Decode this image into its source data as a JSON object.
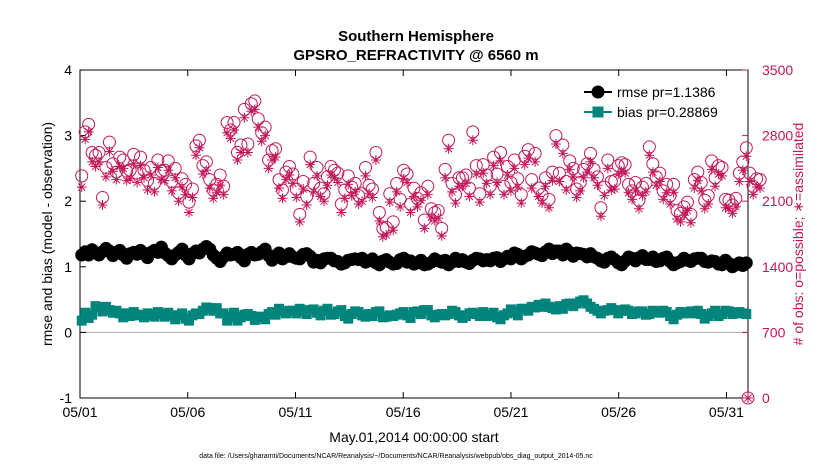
{
  "chart_data": {
    "type": "line",
    "title": [
      "Southern Hemisphere",
      "GPSRO_REFRACTIVITY @ 6560 m"
    ],
    "xlabel": "May.01,2014 00:00:00 start",
    "ylabel": "rmse and bias (model - observation)",
    "ylabel_right": "# of obs: o=possible; ∗=assimilated",
    "xlim": [
      0,
      31
    ],
    "ylim": [
      -1,
      4
    ],
    "ylim_right": [
      0,
      3500
    ],
    "x_ticks": [
      0,
      5,
      10,
      15,
      20,
      25,
      30
    ],
    "x_tick_labels": [
      "05/01",
      "05/06",
      "05/11",
      "05/16",
      "05/21",
      "05/26",
      "05/31"
    ],
    "y_ticks": [
      -1,
      0,
      1,
      2,
      3,
      4
    ],
    "y_tick_labels": [
      "-1",
      "0",
      "1",
      "2",
      "3",
      "4"
    ],
    "y_right_ticks": [
      0,
      700,
      1400,
      2100,
      2800,
      3500
    ],
    "y_right_tick_labels": [
      "0",
      "700",
      "1400",
      "2100",
      "2800",
      "3500"
    ],
    "footnote": "data file: /Users/gharamti/Documents/NCAR/Reanalysis/~/Documents/NCAR/Reanalysis/webpub/obs_diag_output_2014-05.nc",
    "legend_position": "top-right",
    "legend": [
      "rmse pr=1.1386",
      "bias pr=0.28869"
    ],
    "colors": {
      "rmse": "#000000",
      "bias": "#00857c",
      "obs": "#c2185b",
      "zero_line": "#aaaaaa"
    },
    "series": [
      {
        "key": "rmse",
        "marker": "circle",
        "values": [
          1.18,
          1.23,
          1.18,
          1.26,
          1.21,
          1.18,
          1.23,
          1.28,
          1.24,
          1.17,
          1.22,
          1.25,
          1.18,
          1.13,
          1.2,
          1.22,
          1.19,
          1.25,
          1.2,
          1.14,
          1.22,
          1.25,
          1.22,
          1.3,
          1.21,
          1.17,
          1.12,
          1.18,
          1.22,
          1.27,
          1.18,
          1.12,
          1.2,
          1.24,
          1.21,
          1.27,
          1.31,
          1.27,
          1.18,
          1.13,
          1.08,
          1.15,
          1.21,
          1.18,
          1.19,
          1.22,
          1.14,
          1.09,
          1.19,
          1.22,
          1.18,
          1.19,
          1.23,
          1.27,
          1.17,
          1.1,
          1.17,
          1.21,
          1.12,
          1.15,
          1.2,
          1.15,
          1.13,
          1.12,
          1.19,
          1.2,
          1.16,
          1.07,
          1.1,
          1.06,
          1.12,
          1.13,
          1.13,
          1.09,
          1.08,
          1.04,
          1.06,
          1.1,
          1.11,
          1.12,
          1.11,
          1.13,
          1.07,
          1.09,
          1.12,
          1.06,
          1.03,
          1.09,
          1.11,
          1.07,
          1.04,
          1.05,
          1.11,
          1.13,
          1.07,
          1.09,
          1.04,
          1.06,
          1.1,
          1.03,
          1.04,
          1.07,
          1.12,
          1.09,
          1.07,
          1.1,
          1.03,
          1.07,
          1.13,
          1.08,
          1.11,
          1.07,
          1.05,
          1.1,
          1.13,
          1.12,
          1.09,
          1.11,
          1.09,
          1.13,
          1.14,
          1.08,
          1.12,
          1.16,
          1.12,
          1.21,
          1.19,
          1.12,
          1.16,
          1.18,
          1.23,
          1.21,
          1.19,
          1.17,
          1.23,
          1.27,
          1.2,
          1.24,
          1.24,
          1.18,
          1.27,
          1.22,
          1.16,
          1.21,
          1.2,
          1.19,
          1.15,
          1.2,
          1.15,
          1.13,
          1.09,
          1.07,
          1.13,
          1.15,
          1.11,
          1.06,
          1.03,
          1.09,
          1.15,
          1.13,
          1.09,
          1.14,
          1.17,
          1.11,
          1.11,
          1.15,
          1.08,
          1.09,
          1.13,
          1.15,
          1.08,
          1.03,
          1.06,
          1.08,
          1.13,
          1.1,
          1.08,
          1.12,
          1.13,
          1.13,
          1.08,
          1.07,
          1.09,
          1.08,
          1.04,
          1.03,
          1.1,
          1.05,
          1.0,
          1.03,
          1.06,
          1.02,
          1.06
        ]
      },
      {
        "key": "bias",
        "marker": "square",
        "values": [
          0.18,
          0.3,
          0.22,
          0.27,
          0.4,
          0.38,
          0.32,
          0.39,
          0.34,
          0.3,
          0.33,
          0.29,
          0.23,
          0.29,
          0.25,
          0.31,
          0.27,
          0.26,
          0.23,
          0.29,
          0.27,
          0.24,
          0.31,
          0.28,
          0.24,
          0.3,
          0.26,
          0.2,
          0.26,
          0.29,
          0.21,
          0.18,
          0.26,
          0.29,
          0.28,
          0.33,
          0.38,
          0.37,
          0.33,
          0.37,
          0.29,
          0.29,
          0.18,
          0.24,
          0.3,
          0.18,
          0.23,
          0.27,
          0.28,
          0.25,
          0.19,
          0.24,
          0.23,
          0.2,
          0.28,
          0.31,
          0.27,
          0.36,
          0.32,
          0.29,
          0.33,
          0.33,
          0.29,
          0.36,
          0.33,
          0.28,
          0.34,
          0.35,
          0.3,
          0.26,
          0.33,
          0.36,
          0.27,
          0.28,
          0.32,
          0.34,
          0.25,
          0.21,
          0.28,
          0.32,
          0.31,
          0.26,
          0.24,
          0.28,
          0.25,
          0.31,
          0.32,
          0.23,
          0.24,
          0.26,
          0.25,
          0.27,
          0.29,
          0.31,
          0.26,
          0.22,
          0.31,
          0.32,
          0.28,
          0.34,
          0.34,
          0.26,
          0.23,
          0.27,
          0.28,
          0.26,
          0.28,
          0.33,
          0.31,
          0.26,
          0.22,
          0.25,
          0.29,
          0.3,
          0.28,
          0.25,
          0.31,
          0.25,
          0.27,
          0.3,
          0.23,
          0.2,
          0.26,
          0.29,
          0.35,
          0.31,
          0.26,
          0.36,
          0.36,
          0.33,
          0.39,
          0.38,
          0.42,
          0.39,
          0.44,
          0.39,
          0.37,
          0.35,
          0.4,
          0.36,
          0.43,
          0.44,
          0.4,
          0.44,
          0.47,
          0.49,
          0.44,
          0.39,
          0.36,
          0.33,
          0.29,
          0.33,
          0.34,
          0.37,
          0.34,
          0.29,
          0.33,
          0.35,
          0.33,
          0.28,
          0.29,
          0.32,
          0.32,
          0.27,
          0.28,
          0.33,
          0.31,
          0.3,
          0.33,
          0.31,
          0.25,
          0.2,
          0.27,
          0.31,
          0.29,
          0.3,
          0.32,
          0.29,
          0.33,
          0.28,
          0.21,
          0.25,
          0.29,
          0.33,
          0.25,
          0.28,
          0.33,
          0.32,
          0.28,
          0.3,
          0.31,
          0.29,
          0.28
        ]
      },
      {
        "key": "obs_possible",
        "marker": "open-circle",
        "axis": "right",
        "values": [
          2370,
          2840,
          2920,
          2620,
          2590,
          2620,
          2140,
          2460,
          2730,
          2500,
          2410,
          2570,
          2540,
          2420,
          2430,
          2600,
          2400,
          2570,
          2430,
          2320,
          2460,
          2290,
          2540,
          2420,
          2430,
          2530,
          2310,
          2450,
          2190,
          2340,
          2280,
          2090,
          2230,
          2690,
          2750,
          2480,
          2520,
          2330,
          2220,
          2280,
          2380,
          2260,
          2940,
          2860,
          2940,
          2620,
          2700,
          3080,
          2710,
          3140,
          3170,
          2980,
          2830,
          2890,
          2540,
          2640,
          2660,
          2330,
          2220,
          2410,
          2470,
          2390,
          2230,
          1960,
          2310,
          2150,
          2570,
          2290,
          2460,
          2240,
          2180,
          2360,
          2470,
          2430,
          2400,
          2070,
          2220,
          2370,
          2250,
          2290,
          2160,
          2180,
          2460,
          2270,
          2230,
          2620,
          1980,
          1810,
          1820,
          2180,
          1880,
          2290,
          2120,
          2430,
          2390,
          2070,
          2240,
          2130,
          2190,
          1900,
          2260,
          2020,
          1980,
          2000,
          1810,
          2440,
          2750,
          2290,
          2170,
          2350,
          2350,
          2380,
          2240,
          2840,
          2480,
          2180,
          2490,
          2380,
          2260,
          2570,
          2390,
          2620,
          2260,
          2470,
          2300,
          2540,
          2340,
          2170,
          2580,
          2650,
          2330,
          2610,
          2240,
          2170,
          2350,
          2120,
          2410,
          2800,
          2400,
          2700,
          2310,
          2530,
          2450,
          2230,
          2300,
          2440,
          2500,
          2610,
          2440,
          2360,
          2030,
          2250,
          2540,
          2310,
          2320,
          2480,
          2510,
          2490,
          2280,
          2210,
          2300,
          2110,
          2250,
          2290,
          2680,
          2500,
          2360,
          2400,
          2210,
          2280,
          2160,
          2280,
          2000,
          1970,
          2040,
          2090,
          1960,
          2330,
          2410,
          2300,
          2110,
          2160,
          2530,
          2350,
          2480,
          2460,
          2120,
          2110,
          2060,
          2130,
          2400,
          2520,
          2670,
          2400,
          2260,
          2340,
          2330
        ]
      },
      {
        "key": "obs_assimilated",
        "marker": "star",
        "axis": "right",
        "values": [
          2250,
          2760,
          2840,
          2520,
          2470,
          2520,
          2060,
          2360,
          2630,
          2420,
          2330,
          2470,
          2450,
          2320,
          2340,
          2500,
          2300,
          2480,
          2350,
          2220,
          2380,
          2200,
          2460,
          2330,
          2320,
          2430,
          2210,
          2350,
          2100,
          2250,
          2170,
          1980,
          2140,
          2590,
          2670,
          2390,
          2430,
          2240,
          2130,
          2190,
          2270,
          2170,
          2830,
          2770,
          2860,
          2540,
          2620,
          2990,
          2620,
          3060,
          3080,
          2890,
          2740,
          2800,
          2450,
          2540,
          2570,
          2240,
          2130,
          2330,
          2380,
          2290,
          2140,
          1880,
          2230,
          2060,
          2490,
          2200,
          2370,
          2150,
          2100,
          2270,
          2380,
          2350,
          2300,
          1980,
          2130,
          2280,
          2160,
          2200,
          2070,
          2100,
          2370,
          2180,
          2140,
          2540,
          1890,
          1720,
          1740,
          2090,
          1790,
          2200,
          2040,
          2340,
          2300,
          1980,
          2150,
          2040,
          2110,
          1810,
          2170,
          1930,
          1890,
          1920,
          1730,
          2350,
          2660,
          2200,
          2080,
          2260,
          2260,
          2290,
          2150,
          2750,
          2390,
          2090,
          2400,
          2290,
          2170,
          2480,
          2300,
          2530,
          2170,
          2380,
          2210,
          2450,
          2250,
          2080,
          2490,
          2560,
          2240,
          2520,
          2150,
          2080,
          2260,
          2030,
          2320,
          2710,
          2310,
          2610,
          2220,
          2440,
          2360,
          2140,
          2210,
          2350,
          2410,
          2520,
          2350,
          2270,
          1940,
          2160,
          2450,
          2220,
          2230,
          2390,
          2420,
          2400,
          2190,
          2120,
          2210,
          2020,
          2160,
          2200,
          2590,
          2410,
          2270,
          2310,
          2120,
          2190,
          2070,
          2190,
          1910,
          1880,
          1950,
          2000,
          1870,
          2240,
          2320,
          2210,
          2020,
          2070,
          2440,
          2260,
          2390,
          2370,
          2030,
          2020,
          1970,
          2040,
          2310,
          2430,
          2580,
          2310,
          2170,
          2250,
          2240
        ]
      }
    ]
  }
}
